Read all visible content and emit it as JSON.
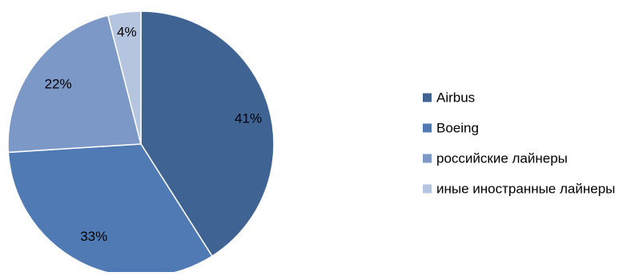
{
  "chart_data": {
    "type": "pie",
    "categories": [
      "Airbus",
      "Boeing",
      "российские лайнеры",
      "иные иностранные лайнеры"
    ],
    "values": [
      41,
      33,
      22,
      4
    ],
    "value_labels": [
      "41%",
      "33%",
      "22%",
      "4%"
    ],
    "colors": [
      "#3F6393",
      "#4F7AB3",
      "#7B98C6",
      "#B5C5E0"
    ],
    "legend_position": "right",
    "start": "12 o'clock, clockwise"
  }
}
